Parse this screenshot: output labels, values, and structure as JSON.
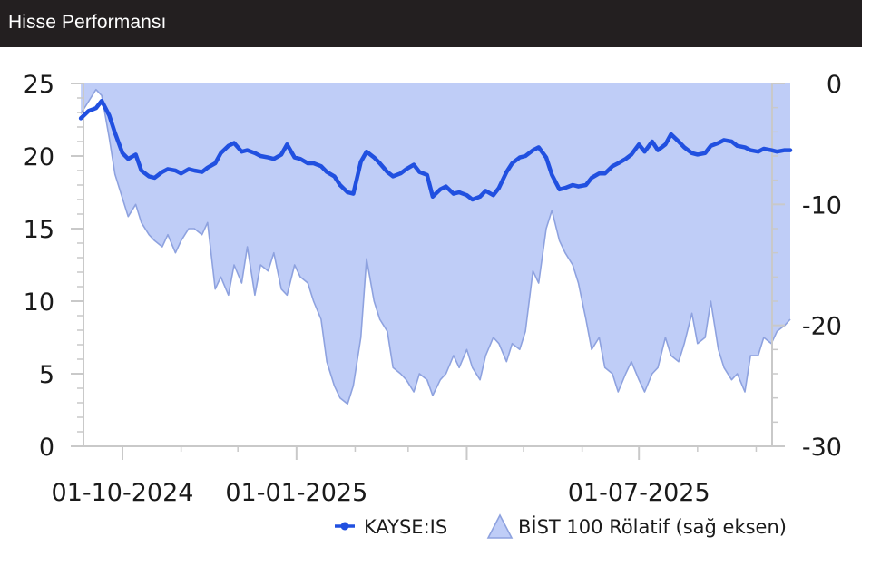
{
  "header": {
    "title": "Hisse Performansı"
  },
  "colors": {
    "header_bg": "#231f20",
    "header_text": "#ffffff",
    "price_line": "#2150e0",
    "relative_fill": "#bfcdf7",
    "relative_stroke": "#8ea2df",
    "axis": "#c9c9c9"
  },
  "chart_data": {
    "type": "line",
    "x_tick_labels": [
      "01-10-2024",
      "01-01-2025",
      "01-07-2025"
    ],
    "y_left": {
      "ticks": [
        "0",
        "5",
        "10",
        "15",
        "20",
        "25"
      ],
      "ylim": [
        0,
        25
      ]
    },
    "y_right": {
      "ticks": [
        "0",
        "-10",
        "-20",
        "-30"
      ],
      "ylim": [
        -30,
        0
      ]
    },
    "grid": false,
    "legend_placement": "bottom-right",
    "series": [
      {
        "name": "KAYSE:IS",
        "kind": "line",
        "axis": "left",
        "x": [
          "2024-09-09",
          "2024-09-13",
          "2024-09-17",
          "2024-09-20",
          "2024-09-24",
          "2024-09-27",
          "2024-10-01",
          "2024-10-04",
          "2024-10-08",
          "2024-10-11",
          "2024-10-15",
          "2024-10-18",
          "2024-10-22",
          "2024-10-25",
          "2024-10-29",
          "2024-11-01",
          "2024-11-05",
          "2024-11-08",
          "2024-11-12",
          "2024-11-15",
          "2024-11-19",
          "2024-11-22",
          "2024-11-26",
          "2024-11-29",
          "2024-12-03",
          "2024-12-06",
          "2024-12-10",
          "2024-12-13",
          "2024-12-17",
          "2024-12-20",
          "2024-12-24",
          "2024-12-27",
          "2024-12-31",
          "2025-01-03",
          "2025-01-07",
          "2025-01-10",
          "2025-01-14",
          "2025-01-17",
          "2025-01-21",
          "2025-01-24",
          "2025-01-28",
          "2025-01-31",
          "2025-02-04",
          "2025-02-07",
          "2025-02-11",
          "2025-02-14",
          "2025-02-18",
          "2025-02-21",
          "2025-02-25",
          "2025-02-28",
          "2025-03-04",
          "2025-03-07",
          "2025-03-11",
          "2025-03-14",
          "2025-03-18",
          "2025-03-21",
          "2025-03-25",
          "2025-03-28",
          "2025-04-01",
          "2025-04-04",
          "2025-04-08",
          "2025-04-11",
          "2025-04-15",
          "2025-04-18",
          "2025-04-22",
          "2025-04-25",
          "2025-04-29",
          "2025-05-02",
          "2025-05-06",
          "2025-05-09",
          "2025-05-13",
          "2025-05-16",
          "2025-05-20",
          "2025-05-23",
          "2025-05-27",
          "2025-05-30",
          "2025-06-03",
          "2025-06-06",
          "2025-06-10",
          "2025-06-13",
          "2025-06-17",
          "2025-06-20",
          "2025-06-24",
          "2025-06-27",
          "2025-07-01",
          "2025-07-04",
          "2025-07-08",
          "2025-07-11",
          "2025-07-15",
          "2025-07-18",
          "2025-07-22",
          "2025-07-25",
          "2025-07-29",
          "2025-08-01",
          "2025-08-05",
          "2025-08-08",
          "2025-08-12",
          "2025-08-15",
          "2025-08-19",
          "2025-08-22",
          "2025-08-26",
          "2025-08-29",
          "2025-09-02",
          "2025-09-05",
          "2025-09-09",
          "2025-09-12",
          "2025-09-16",
          "2025-09-19"
        ],
        "values": [
          22.6,
          23.1,
          23.3,
          23.8,
          22.8,
          21.6,
          20.2,
          19.8,
          20.1,
          19.0,
          18.6,
          18.5,
          18.9,
          19.1,
          19.0,
          18.8,
          19.1,
          19.0,
          18.9,
          19.2,
          19.5,
          20.2,
          20.7,
          20.9,
          20.3,
          20.4,
          20.2,
          20.0,
          19.9,
          19.8,
          20.1,
          20.8,
          19.9,
          19.8,
          19.5,
          19.5,
          19.3,
          18.9,
          18.6,
          18.0,
          17.5,
          17.4,
          19.6,
          20.3,
          19.9,
          19.5,
          18.9,
          18.6,
          18.8,
          19.1,
          19.4,
          18.9,
          18.7,
          17.2,
          17.7,
          17.9,
          17.4,
          17.5,
          17.3,
          17.0,
          17.2,
          17.6,
          17.3,
          17.8,
          18.9,
          19.5,
          19.9,
          20.0,
          20.4,
          20.6,
          19.9,
          18.7,
          17.7,
          17.8,
          18.0,
          17.9,
          18.0,
          18.5,
          18.8,
          18.8,
          19.3,
          19.5,
          19.8,
          20.1,
          20.8,
          20.3,
          21.0,
          20.4,
          20.8,
          21.5,
          21.0,
          20.6,
          20.2,
          20.1,
          20.2,
          20.7,
          20.9,
          21.1,
          21.0,
          20.7,
          20.6,
          20.4,
          20.3,
          20.5,
          20.4,
          20.3,
          20.4,
          20.4
        ]
      },
      {
        "name": "BİST 100 Rölatif (sağ eksen)",
        "kind": "area",
        "axis": "right",
        "x": [
          "2024-09-09",
          "2024-09-13",
          "2024-09-17",
          "2024-09-20",
          "2024-09-24",
          "2024-09-27",
          "2024-10-01",
          "2024-10-04",
          "2024-10-08",
          "2024-10-11",
          "2024-10-15",
          "2024-10-18",
          "2024-10-22",
          "2024-10-25",
          "2024-10-29",
          "2024-11-01",
          "2024-11-05",
          "2024-11-08",
          "2024-11-12",
          "2024-11-15",
          "2024-11-19",
          "2024-11-22",
          "2024-11-26",
          "2024-11-29",
          "2024-12-03",
          "2024-12-06",
          "2024-12-10",
          "2024-12-13",
          "2024-12-17",
          "2024-12-20",
          "2024-12-24",
          "2024-12-27",
          "2024-12-31",
          "2025-01-03",
          "2025-01-07",
          "2025-01-10",
          "2025-01-14",
          "2025-01-17",
          "2025-01-21",
          "2025-01-24",
          "2025-01-28",
          "2025-01-31",
          "2025-02-04",
          "2025-02-07",
          "2025-02-11",
          "2025-02-14",
          "2025-02-18",
          "2025-02-21",
          "2025-02-25",
          "2025-02-28",
          "2025-03-04",
          "2025-03-07",
          "2025-03-11",
          "2025-03-14",
          "2025-03-18",
          "2025-03-21",
          "2025-03-25",
          "2025-03-28",
          "2025-04-01",
          "2025-04-04",
          "2025-04-08",
          "2025-04-11",
          "2025-04-15",
          "2025-04-18",
          "2025-04-22",
          "2025-04-25",
          "2025-04-29",
          "2025-05-02",
          "2025-05-06",
          "2025-05-09",
          "2025-05-13",
          "2025-05-16",
          "2025-05-20",
          "2025-05-23",
          "2025-05-27",
          "2025-05-30",
          "2025-06-03",
          "2025-06-06",
          "2025-06-10",
          "2025-06-13",
          "2025-06-17",
          "2025-06-20",
          "2025-06-24",
          "2025-06-27",
          "2025-07-01",
          "2025-07-04",
          "2025-07-08",
          "2025-07-11",
          "2025-07-15",
          "2025-07-18",
          "2025-07-22",
          "2025-07-25",
          "2025-07-29",
          "2025-08-01",
          "2025-08-05",
          "2025-08-08",
          "2025-08-12",
          "2025-08-15",
          "2025-08-19",
          "2025-08-22",
          "2025-08-26",
          "2025-08-29",
          "2025-09-02",
          "2025-09-05",
          "2025-09-09",
          "2025-09-12",
          "2025-09-16",
          "2025-09-19"
        ],
        "values": [
          -2.5,
          -1.5,
          -0.5,
          -1.0,
          -4.5,
          -7.5,
          -9.5,
          -11.0,
          -10.0,
          -11.5,
          -12.5,
          -13.0,
          -13.5,
          -12.5,
          -14.0,
          -13.0,
          -12.0,
          -12.0,
          -12.5,
          -11.5,
          -17.0,
          -16.0,
          -17.5,
          -15.0,
          -16.5,
          -13.5,
          -17.5,
          -15.0,
          -15.5,
          -14.0,
          -17.0,
          -17.5,
          -15.0,
          -16.0,
          -16.5,
          -18.0,
          -19.5,
          -23.0,
          -25.0,
          -26.0,
          -26.5,
          -25.0,
          -21.0,
          -14.5,
          -18.0,
          -19.5,
          -20.5,
          -23.5,
          -24.0,
          -24.5,
          -25.5,
          -24.0,
          -24.5,
          -25.8,
          -24.5,
          -24.0,
          -22.5,
          -23.5,
          -22.0,
          -23.5,
          -24.5,
          -22.5,
          -21.0,
          -21.5,
          -23.0,
          -21.5,
          -22.0,
          -20.5,
          -15.5,
          -16.5,
          -12.0,
          -10.5,
          -13.0,
          -14.0,
          -15.0,
          -16.5,
          -19.5,
          -22.0,
          -21.0,
          -23.5,
          -24.0,
          -25.5,
          -24.0,
          -23.0,
          -24.5,
          -25.5,
          -24.0,
          -23.5,
          -21.0,
          -22.5,
          -23.0,
          -21.5,
          -19.0,
          -21.5,
          -21.0,
          -18.0,
          -22.0,
          -23.5,
          -24.5,
          -24.0,
          -25.5,
          -22.5,
          -22.5,
          -21.0,
          -21.5,
          -20.5,
          -20.0,
          -19.5
        ]
      }
    ]
  }
}
